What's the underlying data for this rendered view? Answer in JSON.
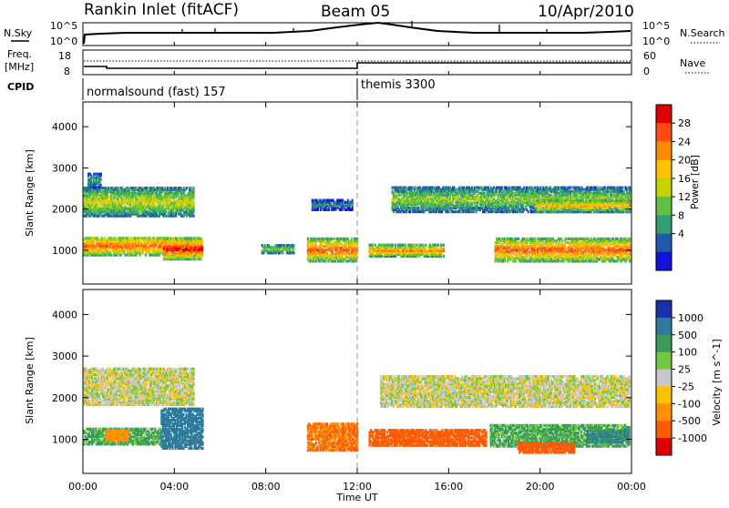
{
  "header": {
    "station": "Rankin Inlet (fitACF)",
    "beam": "Beam 05",
    "date": "10/Apr/2010"
  },
  "noise_panel": {
    "left_label": "N.Sky",
    "right_label": "N.Search",
    "left_ticks": [
      "10^5",
      "10^0"
    ],
    "right_ticks": [
      "10^5",
      "10^0"
    ]
  },
  "freq_panel": {
    "left_label": "Freq.",
    "left_unit": "[MHz]",
    "left_ticks": [
      "18",
      "8"
    ],
    "right_label": "Nave",
    "right_ticks": [
      "60",
      "0"
    ]
  },
  "cpid_panel": {
    "label": "CPID",
    "modes": [
      {
        "name": "normalsound (fast) 157",
        "start_hour": 0
      },
      {
        "name": "themis 3300",
        "start_hour": 12
      }
    ]
  },
  "axes": {
    "ylabel": "Slant Range [km]",
    "yticks": [
      "1000",
      "2000",
      "3000",
      "4000"
    ],
    "xlabel": "Time UT",
    "xticks": [
      "00:00",
      "04:00",
      "08:00",
      "12:00",
      "16:00",
      "20:00",
      "00:00"
    ]
  },
  "power_scale": {
    "label": "Power [dB]",
    "ticks": [
      "28",
      "24",
      "20",
      "16",
      "12",
      "8",
      "4"
    ],
    "colors": [
      "#e00000",
      "#ff4a10",
      "#ff8a00",
      "#ffc000",
      "#c8d000",
      "#60c040",
      "#30a070",
      "#205ab0",
      "#1010e0"
    ]
  },
  "velocity_scale": {
    "label": "Velocity [m s^-1]",
    "ticks": [
      "1000",
      "500",
      "100",
      "25",
      "-25",
      "-100",
      "-500",
      "-1000"
    ],
    "colors": [
      "#1a2fb0",
      "#2f7a9a",
      "#3a9a5a",
      "#70c840",
      "#c8c8c8",
      "#ffc000",
      "#ff9000",
      "#ff5a00",
      "#e00000"
    ]
  },
  "chart_data": [
    {
      "type": "heatmap",
      "title": "Power",
      "xlabel": "Time UT",
      "ylabel": "Slant Range [km]",
      "xlim": [
        0,
        24
      ],
      "ylim": [
        180,
        4600
      ],
      "clim": [
        0,
        32
      ],
      "cbar_label": "Power [dB]",
      "echo_regions": [
        {
          "t0": 0.0,
          "t1": 5.2,
          "r0": 850,
          "r1": 1300,
          "value": 22
        },
        {
          "t0": 3.5,
          "t1": 5.2,
          "r0": 750,
          "r1": 1250,
          "value": 26
        },
        {
          "t0": 0.0,
          "t1": 4.8,
          "r0": 1800,
          "r1": 2500,
          "value": 14
        },
        {
          "t0": 0.2,
          "t1": 0.8,
          "r0": 2500,
          "r1": 2850,
          "value": 8
        },
        {
          "t0": 7.8,
          "t1": 9.2,
          "r0": 900,
          "r1": 1100,
          "value": 12
        },
        {
          "t0": 9.8,
          "t1": 12.0,
          "r0": 700,
          "r1": 1250,
          "value": 22
        },
        {
          "t0": 10.0,
          "t1": 11.8,
          "r0": 1950,
          "r1": 2200,
          "value": 6
        },
        {
          "t0": 12.5,
          "t1": 15.8,
          "r0": 820,
          "r1": 1100,
          "value": 20
        },
        {
          "t0": 13.5,
          "t1": 24.0,
          "r0": 1900,
          "r1": 2500,
          "value": 12
        },
        {
          "t0": 18.0,
          "t1": 24.0,
          "r0": 700,
          "r1": 1250,
          "value": 22
        },
        {
          "t0": 19.8,
          "t1": 24.0,
          "r0": 1900,
          "r1": 2200,
          "value": 18
        }
      ]
    },
    {
      "type": "heatmap",
      "title": "Velocity",
      "xlabel": "Time UT",
      "ylabel": "Slant Range [km]",
      "xlim": [
        0,
        24
      ],
      "ylim": [
        180,
        4600
      ],
      "clim": [
        -1000,
        1000
      ],
      "cbar_label": "Velocity [m s^-1]",
      "echo_regions": [
        {
          "t0": 0.0,
          "t1": 3.4,
          "r0": 850,
          "r1": 1250,
          "value": 80
        },
        {
          "t0": 1.0,
          "t1": 2.0,
          "r0": 950,
          "r1": 1200,
          "value": -150
        },
        {
          "t0": 3.4,
          "t1": 5.2,
          "r0": 750,
          "r1": 1700,
          "value": 600
        },
        {
          "t0": 0.0,
          "t1": 4.8,
          "r0": 1800,
          "r1": 2700,
          "value": 0
        },
        {
          "t0": 9.8,
          "t1": 12.0,
          "r0": 700,
          "r1": 1350,
          "value": -300
        },
        {
          "t0": 12.5,
          "t1": 17.6,
          "r0": 820,
          "r1": 1200,
          "value": -500
        },
        {
          "t0": 13.0,
          "t1": 24.0,
          "r0": 1750,
          "r1": 2500,
          "value": 0
        },
        {
          "t0": 17.8,
          "t1": 24.0,
          "r0": 800,
          "r1": 1300,
          "value": 80
        },
        {
          "t0": 19.0,
          "t1": 21.5,
          "r0": 650,
          "r1": 900,
          "value": -500
        },
        {
          "t0": 22.0,
          "t1": 24.0,
          "r0": 900,
          "r1": 1200,
          "value": 300
        }
      ]
    }
  ]
}
